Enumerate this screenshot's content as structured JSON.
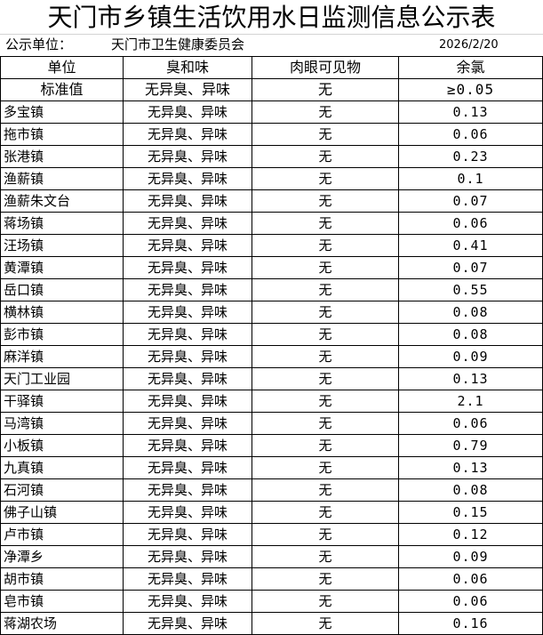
{
  "title": "天门市乡镇生活饮用水日监测信息公示表",
  "info": {
    "unit_label": "公示单位：",
    "unit_value": "天门市卫生健康委员会",
    "date": "2026/2/20"
  },
  "columns": [
    "单位",
    "臭和味",
    "肉眼可见物",
    "余氯"
  ],
  "standard": {
    "name": "标准值",
    "odor": "无异臭、异味",
    "visible": "无",
    "chlorine": "≥0.05"
  },
  "rows": [
    {
      "name": "多宝镇",
      "odor": "无异臭、异味",
      "visible": "无",
      "chlorine": "0.13"
    },
    {
      "name": "拖市镇",
      "odor": "无异臭、异味",
      "visible": "无",
      "chlorine": "0.06"
    },
    {
      "name": "张港镇",
      "odor": "无异臭、异味",
      "visible": "无",
      "chlorine": "0.23"
    },
    {
      "name": "渔薪镇",
      "odor": "无异臭、异味",
      "visible": "无",
      "chlorine": "0.1"
    },
    {
      "name": "渔薪朱文台",
      "odor": "无异臭、异味",
      "visible": "无",
      "chlorine": "0.07"
    },
    {
      "name": "蒋场镇",
      "odor": "无异臭、异味",
      "visible": "无",
      "chlorine": "0.06"
    },
    {
      "name": "汪场镇",
      "odor": "无异臭、异味",
      "visible": "无",
      "chlorine": "0.41"
    },
    {
      "name": "黄潭镇",
      "odor": "无异臭、异味",
      "visible": "无",
      "chlorine": "0.07"
    },
    {
      "name": "岳口镇",
      "odor": "无异臭、异味",
      "visible": "无",
      "chlorine": "0.55"
    },
    {
      "name": "横林镇",
      "odor": "无异臭、异味",
      "visible": "无",
      "chlorine": "0.08"
    },
    {
      "name": "彭市镇",
      "odor": "无异臭、异味",
      "visible": "无",
      "chlorine": "0.08"
    },
    {
      "name": "麻洋镇",
      "odor": "无异臭、异味",
      "visible": "无",
      "chlorine": "0.09"
    },
    {
      "name": "天门工业园",
      "odor": "无异臭、异味",
      "visible": "无",
      "chlorine": "0.13"
    },
    {
      "name": "干驿镇",
      "odor": "无异臭、异味",
      "visible": "无",
      "chlorine": "2.1"
    },
    {
      "name": "马湾镇",
      "odor": "无异臭、异味",
      "visible": "无",
      "chlorine": "0.06"
    },
    {
      "name": "小板镇",
      "odor": "无异臭、异味",
      "visible": "无",
      "chlorine": "0.79"
    },
    {
      "name": "九真镇",
      "odor": "无异臭、异味",
      "visible": "无",
      "chlorine": "0.13"
    },
    {
      "name": "石河镇",
      "odor": "无异臭、异味",
      "visible": "无",
      "chlorine": "0.08"
    },
    {
      "name": "佛子山镇",
      "odor": "无异臭、异味",
      "visible": "无",
      "chlorine": "0.15"
    },
    {
      "name": "卢市镇",
      "odor": "无异臭、异味",
      "visible": "无",
      "chlorine": "0.12"
    },
    {
      "name": "净潭乡",
      "odor": "无异臭、异味",
      "visible": "无",
      "chlorine": "0.09"
    },
    {
      "name": "胡市镇",
      "odor": "无异臭、异味",
      "visible": "无",
      "chlorine": "0.06"
    },
    {
      "name": "皂市镇",
      "odor": "无异臭、异味",
      "visible": "无",
      "chlorine": "0.06"
    },
    {
      "name": "蒋湖农场",
      "odor": "无异臭、异味",
      "visible": "无",
      "chlorine": "0.16"
    }
  ]
}
